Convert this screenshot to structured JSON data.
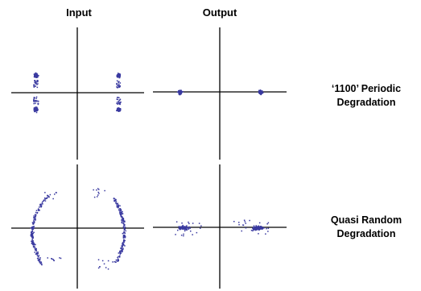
{
  "headers": {
    "input": "Input",
    "output": "Output"
  },
  "rows": [
    {
      "label_line1": "‘1100’ Periodic",
      "label_line2": "Degradation"
    },
    {
      "label_line1": "Quasi Random",
      "label_line2": "Degradation"
    }
  ],
  "colors": {
    "points": "#3a3aa0",
    "axes": "#000000",
    "text": "#000000"
  }
}
